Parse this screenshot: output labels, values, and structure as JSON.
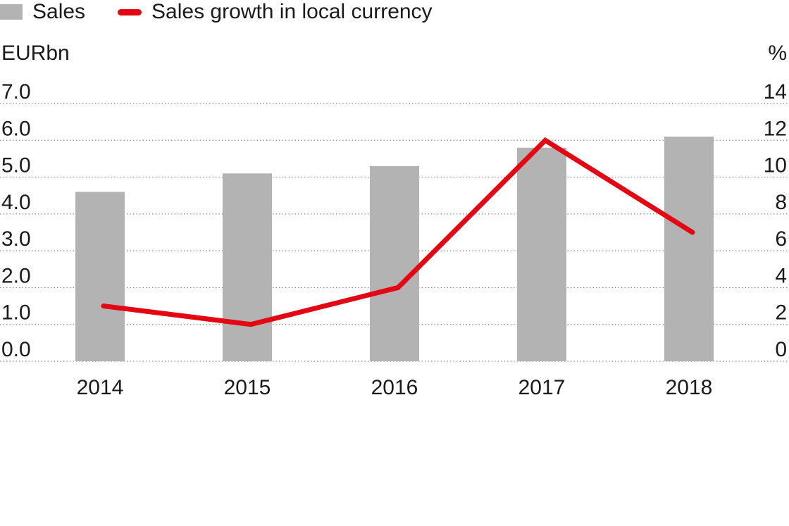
{
  "chart_data": {
    "type": "bar",
    "categories": [
      "2014",
      "2015",
      "2016",
      "2017",
      "2018"
    ],
    "series": [
      {
        "name": "Sales",
        "type": "bar",
        "axis": "left",
        "values": [
          4.6,
          5.1,
          5.3,
          5.8,
          6.1
        ],
        "color": "#b3b3b3"
      },
      {
        "name": "Sales growth in local currency",
        "type": "line",
        "axis": "right",
        "values": [
          3.0,
          2.0,
          4.0,
          12.0,
          7.0
        ],
        "color": "#e30613"
      }
    ],
    "left_axis": {
      "label": "EURbn",
      "ylim": [
        0,
        7
      ],
      "ticks": [
        "0.0",
        "1.0",
        "2.0",
        "3.0",
        "4.0",
        "5.0",
        "6.0",
        "7.0"
      ]
    },
    "right_axis": {
      "label": "%",
      "ylim": [
        0,
        14
      ],
      "ticks": [
        "0",
        "2",
        "4",
        "6",
        "8",
        "10",
        "12",
        "14"
      ]
    },
    "grid": "dotted horizontal",
    "legend_position": "top-left"
  },
  "legend": {
    "bar_label": "Sales",
    "line_label": "Sales growth in local currency"
  }
}
